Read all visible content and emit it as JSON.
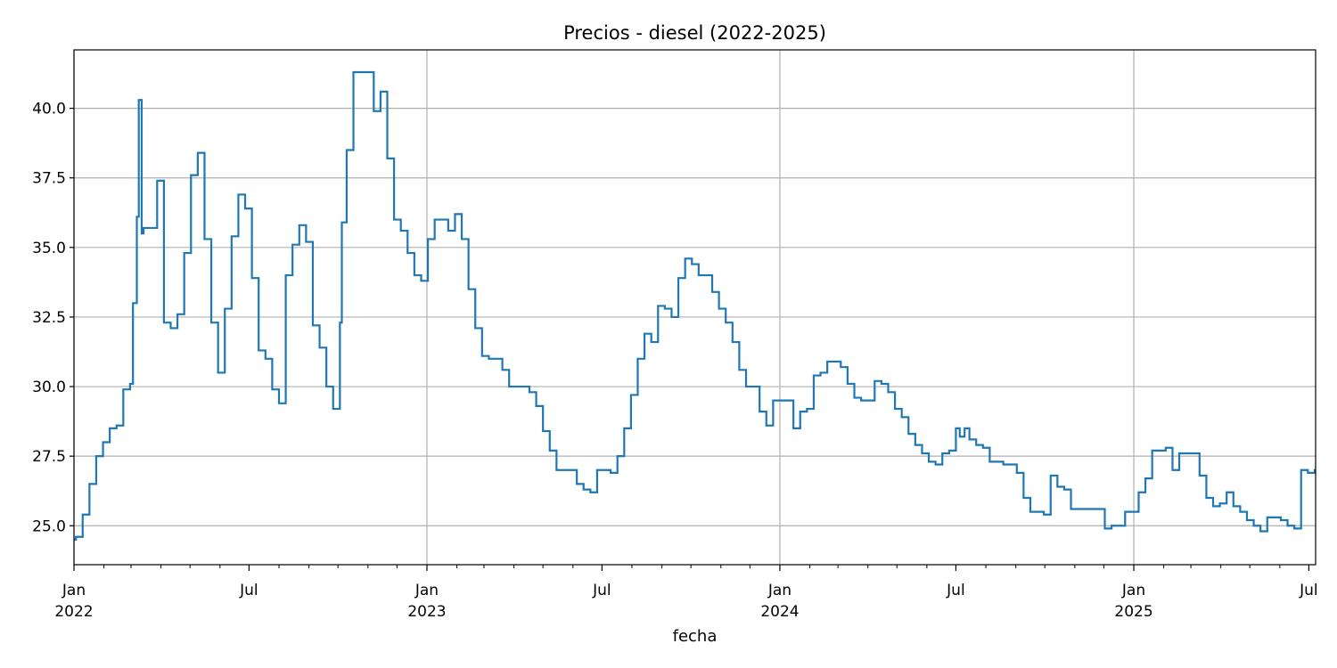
{
  "chart_data": {
    "type": "line",
    "title": "Precios - diesel (2022-2025)",
    "xlabel": "fecha",
    "ylabel": "",
    "x_range": [
      "2022-01-01",
      "2025-07-08"
    ],
    "ylim": [
      23.6,
      42.1
    ],
    "grid": true,
    "line_color": "#1f77b4",
    "y_ticks": [
      "25.0",
      "27.5",
      "30.0",
      "32.5",
      "35.0",
      "37.5",
      "40.0"
    ],
    "x_tick_labels": [
      {
        "date": "2022-01-01",
        "line1": "Jan",
        "line2": "2022"
      },
      {
        "date": "2022-07-01",
        "line1": "Jul",
        "line2": ""
      },
      {
        "date": "2023-01-01",
        "line1": "Jan",
        "line2": "2023"
      },
      {
        "date": "2023-07-01",
        "line1": "Jul",
        "line2": ""
      },
      {
        "date": "2024-01-01",
        "line1": "Jan",
        "line2": "2024"
      },
      {
        "date": "2024-07-01",
        "line1": "Jul",
        "line2": ""
      },
      {
        "date": "2025-01-01",
        "line1": "Jan",
        "line2": "2025"
      },
      {
        "date": "2025-07-01",
        "line1": "Jul",
        "line2": ""
      }
    ],
    "series": [
      {
        "points": [
          [
            "2022-01-01",
            24.5
          ],
          [
            "2022-01-03",
            24.6
          ],
          [
            "2022-01-10",
            25.4
          ],
          [
            "2022-01-17",
            26.5
          ],
          [
            "2022-01-24",
            27.5
          ],
          [
            "2022-01-31",
            28.0
          ],
          [
            "2022-02-07",
            28.5
          ],
          [
            "2022-02-14",
            28.6
          ],
          [
            "2022-02-21",
            29.9
          ],
          [
            "2022-02-28",
            30.1
          ],
          [
            "2022-03-03",
            33.0
          ],
          [
            "2022-03-07",
            36.1
          ],
          [
            "2022-03-09",
            40.3
          ],
          [
            "2022-03-12",
            35.5
          ],
          [
            "2022-03-14",
            35.7
          ],
          [
            "2022-03-21",
            35.7
          ],
          [
            "2022-03-28",
            37.4
          ],
          [
            "2022-04-04",
            32.3
          ],
          [
            "2022-04-11",
            32.1
          ],
          [
            "2022-04-18",
            32.6
          ],
          [
            "2022-04-25",
            34.8
          ],
          [
            "2022-05-02",
            37.6
          ],
          [
            "2022-05-09",
            38.4
          ],
          [
            "2022-05-16",
            35.3
          ],
          [
            "2022-05-23",
            32.3
          ],
          [
            "2022-05-30",
            30.5
          ],
          [
            "2022-06-06",
            32.8
          ],
          [
            "2022-06-13",
            35.4
          ],
          [
            "2022-06-20",
            36.9
          ],
          [
            "2022-06-27",
            36.4
          ],
          [
            "2022-07-04",
            33.9
          ],
          [
            "2022-07-11",
            31.3
          ],
          [
            "2022-07-18",
            31.0
          ],
          [
            "2022-07-25",
            29.9
          ],
          [
            "2022-08-01",
            29.4
          ],
          [
            "2022-08-08",
            34.0
          ],
          [
            "2022-08-15",
            35.1
          ],
          [
            "2022-08-22",
            35.8
          ],
          [
            "2022-08-29",
            35.2
          ],
          [
            "2022-09-05",
            32.2
          ],
          [
            "2022-09-12",
            31.4
          ],
          [
            "2022-09-19",
            30.0
          ],
          [
            "2022-09-26",
            29.2
          ],
          [
            "2022-10-03",
            32.3
          ],
          [
            "2022-10-05",
            35.9
          ],
          [
            "2022-10-10",
            38.5
          ],
          [
            "2022-10-17",
            41.3
          ],
          [
            "2022-10-24",
            41.3
          ],
          [
            "2022-10-31",
            41.3
          ],
          [
            "2022-11-07",
            39.9
          ],
          [
            "2022-11-14",
            40.6
          ],
          [
            "2022-11-21",
            38.2
          ],
          [
            "2022-11-28",
            36.0
          ],
          [
            "2022-12-05",
            35.6
          ],
          [
            "2022-12-12",
            34.8
          ],
          [
            "2022-12-19",
            34.0
          ],
          [
            "2022-12-26",
            33.8
          ],
          [
            "2023-01-02",
            35.3
          ],
          [
            "2023-01-09",
            36.0
          ],
          [
            "2023-01-16",
            36.0
          ],
          [
            "2023-01-23",
            35.6
          ],
          [
            "2023-01-30",
            36.2
          ],
          [
            "2023-02-06",
            35.3
          ],
          [
            "2023-02-13",
            33.5
          ],
          [
            "2023-02-20",
            32.1
          ],
          [
            "2023-02-27",
            31.1
          ],
          [
            "2023-03-06",
            31.0
          ],
          [
            "2023-03-13",
            31.0
          ],
          [
            "2023-03-20",
            30.6
          ],
          [
            "2023-03-27",
            30.0
          ],
          [
            "2023-04-03",
            30.0
          ],
          [
            "2023-04-10",
            30.0
          ],
          [
            "2023-04-17",
            29.8
          ],
          [
            "2023-04-24",
            29.3
          ],
          [
            "2023-05-01",
            28.4
          ],
          [
            "2023-05-08",
            27.7
          ],
          [
            "2023-05-15",
            27.0
          ],
          [
            "2023-05-22",
            27.0
          ],
          [
            "2023-05-29",
            27.0
          ],
          [
            "2023-06-05",
            26.5
          ],
          [
            "2023-06-12",
            26.3
          ],
          [
            "2023-06-19",
            26.2
          ],
          [
            "2023-06-26",
            27.0
          ],
          [
            "2023-07-03",
            27.0
          ],
          [
            "2023-07-10",
            26.9
          ],
          [
            "2023-07-17",
            27.5
          ],
          [
            "2023-07-24",
            28.5
          ],
          [
            "2023-07-31",
            29.7
          ],
          [
            "2023-08-07",
            31.0
          ],
          [
            "2023-08-14",
            31.9
          ],
          [
            "2023-08-21",
            31.6
          ],
          [
            "2023-08-28",
            32.9
          ],
          [
            "2023-09-04",
            32.8
          ],
          [
            "2023-09-11",
            32.5
          ],
          [
            "2023-09-18",
            33.9
          ],
          [
            "2023-09-25",
            34.6
          ],
          [
            "2023-10-02",
            34.4
          ],
          [
            "2023-10-09",
            34.0
          ],
          [
            "2023-10-16",
            34.0
          ],
          [
            "2023-10-23",
            33.4
          ],
          [
            "2023-10-30",
            32.8
          ],
          [
            "2023-11-06",
            32.3
          ],
          [
            "2023-11-13",
            31.6
          ],
          [
            "2023-11-20",
            30.6
          ],
          [
            "2023-11-27",
            30.0
          ],
          [
            "2023-12-04",
            30.0
          ],
          [
            "2023-12-11",
            29.1
          ],
          [
            "2023-12-18",
            28.6
          ],
          [
            "2023-12-25",
            29.5
          ],
          [
            "2024-01-01",
            29.5
          ],
          [
            "2024-01-08",
            29.5
          ],
          [
            "2024-01-15",
            28.5
          ],
          [
            "2024-01-22",
            29.1
          ],
          [
            "2024-01-29",
            29.2
          ],
          [
            "2024-02-05",
            30.4
          ],
          [
            "2024-02-12",
            30.5
          ],
          [
            "2024-02-19",
            30.9
          ],
          [
            "2024-02-26",
            30.9
          ],
          [
            "2024-03-04",
            30.7
          ],
          [
            "2024-03-11",
            30.1
          ],
          [
            "2024-03-18",
            29.6
          ],
          [
            "2024-03-25",
            29.5
          ],
          [
            "2024-04-01",
            29.5
          ],
          [
            "2024-04-08",
            30.2
          ],
          [
            "2024-04-15",
            30.1
          ],
          [
            "2024-04-22",
            29.8
          ],
          [
            "2024-04-29",
            29.2
          ],
          [
            "2024-05-06",
            28.9
          ],
          [
            "2024-05-13",
            28.3
          ],
          [
            "2024-05-20",
            27.9
          ],
          [
            "2024-05-27",
            27.6
          ],
          [
            "2024-06-03",
            27.3
          ],
          [
            "2024-06-10",
            27.2
          ],
          [
            "2024-06-17",
            27.6
          ],
          [
            "2024-06-24",
            27.7
          ],
          [
            "2024-07-01",
            28.5
          ],
          [
            "2024-07-05",
            28.2
          ],
          [
            "2024-07-10",
            28.5
          ],
          [
            "2024-07-15",
            28.1
          ],
          [
            "2024-07-22",
            27.9
          ],
          [
            "2024-07-29",
            27.8
          ],
          [
            "2024-08-05",
            27.3
          ],
          [
            "2024-08-12",
            27.3
          ],
          [
            "2024-08-19",
            27.2
          ],
          [
            "2024-08-26",
            27.2
          ],
          [
            "2024-09-02",
            26.9
          ],
          [
            "2024-09-09",
            26.0
          ],
          [
            "2024-09-16",
            25.5
          ],
          [
            "2024-09-23",
            25.5
          ],
          [
            "2024-09-30",
            25.4
          ],
          [
            "2024-10-07",
            26.8
          ],
          [
            "2024-10-14",
            26.4
          ],
          [
            "2024-10-21",
            26.3
          ],
          [
            "2024-10-28",
            25.6
          ],
          [
            "2024-11-04",
            25.6
          ],
          [
            "2024-11-11",
            25.6
          ],
          [
            "2024-11-18",
            25.6
          ],
          [
            "2024-11-25",
            25.6
          ],
          [
            "2024-12-02",
            24.9
          ],
          [
            "2024-12-09",
            25.0
          ],
          [
            "2024-12-16",
            25.0
          ],
          [
            "2024-12-23",
            25.5
          ],
          [
            "2024-12-30",
            25.5
          ],
          [
            "2025-01-06",
            26.2
          ],
          [
            "2025-01-13",
            26.7
          ],
          [
            "2025-01-20",
            27.7
          ],
          [
            "2025-01-27",
            27.7
          ],
          [
            "2025-02-03",
            27.8
          ],
          [
            "2025-02-10",
            27.0
          ],
          [
            "2025-02-17",
            27.6
          ],
          [
            "2025-02-24",
            27.6
          ],
          [
            "2025-03-03",
            27.6
          ],
          [
            "2025-03-10",
            26.8
          ],
          [
            "2025-03-17",
            26.0
          ],
          [
            "2025-03-24",
            25.7
          ],
          [
            "2025-03-31",
            25.8
          ],
          [
            "2025-04-07",
            26.2
          ],
          [
            "2025-04-14",
            25.7
          ],
          [
            "2025-04-21",
            25.5
          ],
          [
            "2025-04-28",
            25.2
          ],
          [
            "2025-05-05",
            25.0
          ],
          [
            "2025-05-12",
            24.8
          ],
          [
            "2025-05-19",
            25.3
          ],
          [
            "2025-05-26",
            25.3
          ],
          [
            "2025-06-02",
            25.2
          ],
          [
            "2025-06-09",
            25.0
          ],
          [
            "2025-06-16",
            24.9
          ],
          [
            "2025-06-23",
            27.0
          ],
          [
            "2025-06-30",
            26.9
          ],
          [
            "2025-07-07",
            27.0
          ]
        ]
      }
    ]
  }
}
